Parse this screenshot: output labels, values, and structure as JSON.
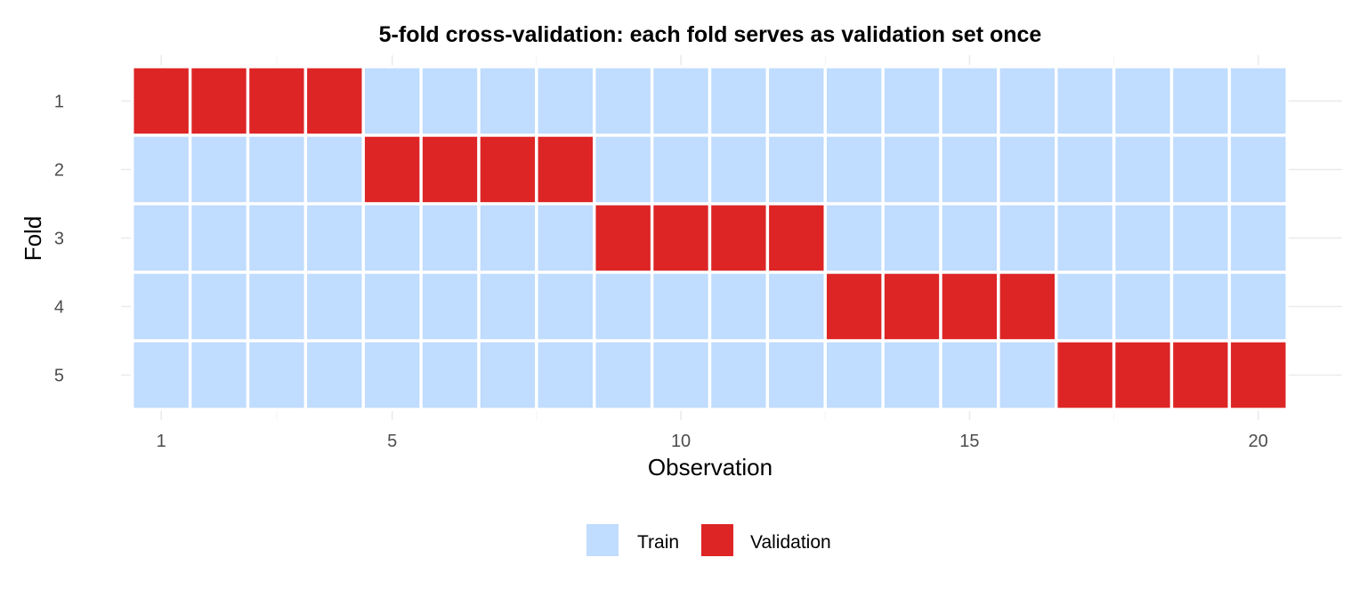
{
  "chart_data": {
    "type": "heatmap",
    "title": "5-fold cross-validation: each fold serves as validation set once",
    "xlabel": "Observation",
    "ylabel": "Fold",
    "x_ticks": [
      1,
      5,
      10,
      15,
      20
    ],
    "y_ticks": [
      1,
      2,
      3,
      4,
      5
    ],
    "xlim": [
      0.55,
      20.45
    ],
    "observations": [
      1,
      2,
      3,
      4,
      5,
      6,
      7,
      8,
      9,
      10,
      11,
      12,
      13,
      14,
      15,
      16,
      17,
      18,
      19,
      20
    ],
    "folds": [
      1,
      2,
      3,
      4,
      5
    ],
    "grid": true,
    "legend_position": "bottom",
    "legend": [
      {
        "label": "Train",
        "color": "#c0dcfe"
      },
      {
        "label": "Validation",
        "color": "#dd2526"
      }
    ],
    "cells": [
      [
        "Validation",
        "Validation",
        "Validation",
        "Validation",
        "Train",
        "Train",
        "Train",
        "Train",
        "Train",
        "Train",
        "Train",
        "Train",
        "Train",
        "Train",
        "Train",
        "Train",
        "Train",
        "Train",
        "Train",
        "Train"
      ],
      [
        "Train",
        "Train",
        "Train",
        "Train",
        "Validation",
        "Validation",
        "Validation",
        "Validation",
        "Train",
        "Train",
        "Train",
        "Train",
        "Train",
        "Train",
        "Train",
        "Train",
        "Train",
        "Train",
        "Train",
        "Train"
      ],
      [
        "Train",
        "Train",
        "Train",
        "Train",
        "Train",
        "Train",
        "Train",
        "Train",
        "Validation",
        "Validation",
        "Validation",
        "Validation",
        "Train",
        "Train",
        "Train",
        "Train",
        "Train",
        "Train",
        "Train",
        "Train"
      ],
      [
        "Train",
        "Train",
        "Train",
        "Train",
        "Train",
        "Train",
        "Train",
        "Train",
        "Train",
        "Train",
        "Train",
        "Train",
        "Validation",
        "Validation",
        "Validation",
        "Validation",
        "Train",
        "Train",
        "Train",
        "Train"
      ],
      [
        "Train",
        "Train",
        "Train",
        "Train",
        "Train",
        "Train",
        "Train",
        "Train",
        "Train",
        "Train",
        "Train",
        "Train",
        "Train",
        "Train",
        "Train",
        "Train",
        "Validation",
        "Validation",
        "Validation",
        "Validation"
      ]
    ]
  }
}
